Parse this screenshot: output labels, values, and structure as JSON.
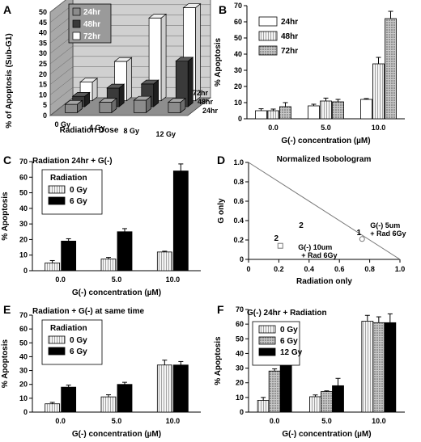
{
  "chart_data": [
    {
      "panel": "A",
      "type": "bar",
      "view": "3d",
      "categories": [
        "0 Gy",
        "4 Gy",
        "8 Gy",
        "12 Gy"
      ],
      "xlabel": "Radiation Dose",
      "ylabel": "% of Apoptosis (Sub-G1)",
      "ylim": [
        0,
        50
      ],
      "yticks": [
        "0",
        "5",
        "10",
        "15",
        "20",
        "25",
        "30",
        "35",
        "40",
        "45",
        "50"
      ],
      "depth_labels": [
        "72hr",
        "48hr",
        "24hr"
      ],
      "legend": [
        "24hr",
        "48hr",
        "72hr"
      ],
      "series": [
        {
          "name": "24hr",
          "color": "#8c8c8c",
          "values": [
            4,
            5,
            6,
            5
          ]
        },
        {
          "name": "48hr",
          "color": "#3a3a3a",
          "values": [
            5,
            9,
            11,
            22
          ]
        },
        {
          "name": "72hr",
          "color": "#ffffff",
          "values": [
            9,
            19,
            40,
            45
          ]
        }
      ]
    },
    {
      "panel": "B",
      "type": "bar",
      "categories": [
        "0.0",
        "5.0",
        "10.0"
      ],
      "xlabel": "G(-) concentration (µM)",
      "ylabel": "% Apoptosis",
      "ylim": [
        0,
        70
      ],
      "yticks": [
        "0",
        "10",
        "20",
        "30",
        "40",
        "50",
        "60",
        "70"
      ],
      "series": [
        {
          "name": "24hr",
          "color": "#ffffff",
          "pattern": "none",
          "values": [
            5,
            8,
            12
          ],
          "err": [
            1.2,
            1.0,
            0.5
          ]
        },
        {
          "name": "48hr",
          "color": "#d8d8d8",
          "pattern": "lines",
          "values": [
            5,
            11,
            34
          ],
          "err": [
            1.0,
            1.8,
            4.0
          ]
        },
        {
          "name": "72hr",
          "color": "#b0b0b0",
          "pattern": "dots",
          "values": [
            7.5,
            10.5,
            62
          ],
          "err": [
            2.5,
            1.5,
            4.5
          ]
        }
      ]
    },
    {
      "panel": "C",
      "type": "bar",
      "title": "Radiation 24hr + G(-)",
      "legend_title": "Radiation",
      "categories": [
        "0.0",
        "5.0",
        "10.0"
      ],
      "xlabel": "G(-) concentration (µM)",
      "ylabel": "% Apoptosis",
      "ylim": [
        0,
        70
      ],
      "yticks": [
        "0",
        "10",
        "20",
        "30",
        "40",
        "50",
        "60",
        "70"
      ],
      "series": [
        {
          "name": "0 Gy",
          "color": "#f2f2f2",
          "pattern": "lines",
          "values": [
            5,
            7.5,
            12
          ],
          "err": [
            1.5,
            1.0,
            0.5
          ]
        },
        {
          "name": "6 Gy",
          "color": "#000000",
          "pattern": "none",
          "values": [
            19,
            25,
            64
          ],
          "err": [
            1.5,
            2.0,
            4.5
          ]
        }
      ]
    },
    {
      "panel": "D",
      "type": "scatter",
      "title": "Normalized Isobologram",
      "xlabel": "Radiation only",
      "ylabel": "G only",
      "xlim": [
        0,
        1
      ],
      "ylim": [
        0,
        1
      ],
      "xticks": [
        "0",
        "0.2",
        "0.4",
        "0.6",
        "0.8",
        "1.0"
      ],
      "yticks": [
        "0",
        "0.2",
        "0.4",
        "0.6",
        "0.8",
        "1.0"
      ],
      "line": [
        [
          0,
          1
        ],
        [
          1,
          0
        ]
      ],
      "points": [
        {
          "x": 0.21,
          "y": 0.14,
          "marker": "square",
          "label": "2",
          "annotation": [
            "G(-) 10um",
            "+ Rad 6Gy"
          ]
        },
        {
          "x": 0.75,
          "y": 0.21,
          "marker": "circle",
          "label": "1",
          "annotation": [
            "G(-) 5um",
            "+ Rad 6Gy"
          ]
        }
      ],
      "extra_labels": [
        "2"
      ]
    },
    {
      "panel": "E",
      "type": "bar",
      "title": "Radiation + G(-) at same time",
      "legend_title": "Radiation",
      "categories": [
        "0.0",
        "5.0",
        "10.0"
      ],
      "xlabel": "G(-) concentration (µM)",
      "ylabel": "% Apoptosis",
      "ylim": [
        0,
        70
      ],
      "yticks": [
        "0",
        "10",
        "20",
        "30",
        "40",
        "50",
        "60",
        "70"
      ],
      "series": [
        {
          "name": "0 Gy",
          "color": "#f2f2f2",
          "pattern": "lines",
          "values": [
            6,
            11,
            34
          ],
          "err": [
            1.0,
            1.5,
            3.5
          ]
        },
        {
          "name": "6 Gy",
          "color": "#000000",
          "pattern": "none",
          "values": [
            18,
            20,
            34
          ],
          "err": [
            1.5,
            1.5,
            2.5
          ]
        }
      ]
    },
    {
      "panel": "F",
      "type": "bar",
      "title": "G(-) 24hr + Radiation",
      "categories": [
        "0.0",
        "5.0",
        "10.0"
      ],
      "xlabel": "G(-) concentration (µM)",
      "ylabel": "% Apoptosis",
      "ylim": [
        0,
        70
      ],
      "yticks": [
        "0",
        "10",
        "20",
        "30",
        "40",
        "50",
        "60",
        "70"
      ],
      "series": [
        {
          "name": "0 Gy",
          "color": "#f2f2f2",
          "pattern": "lines",
          "values": [
            8,
            10.5,
            62
          ],
          "err": [
            2.0,
            1.2,
            4.0
          ]
        },
        {
          "name": "6 Gy",
          "color": "#a0a0a0",
          "pattern": "dots",
          "values": [
            28,
            14,
            61
          ],
          "err": [
            1.5,
            0.5,
            4.0
          ]
        },
        {
          "name": "12 Gy",
          "color": "#000000",
          "pattern": "none",
          "values": [
            33,
            18,
            61
          ],
          "err": [
            0.5,
            5.0,
            6.0
          ]
        }
      ]
    }
  ]
}
